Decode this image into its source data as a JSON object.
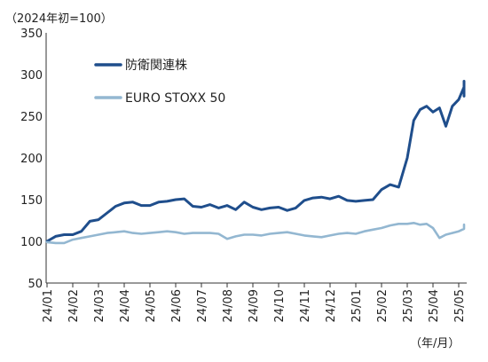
{
  "chart_data": {
    "type": "line",
    "unit_label": "（2024年初=100）",
    "x_unit_label": "（年/月）",
    "y_ticks": [
      50,
      100,
      150,
      200,
      250,
      300,
      350
    ],
    "ylim": [
      50,
      350
    ],
    "x_ticks": [
      "24/01",
      "24/02",
      "24/03",
      "24/04",
      "24/05",
      "24/06",
      "24/07",
      "24/08",
      "24/09",
      "24/10",
      "24/11",
      "24/12",
      "25/01",
      "25/02",
      "25/03",
      "25/04",
      "25/05"
    ],
    "x_range_months": [
      "24/01",
      "25/05"
    ],
    "grid": "none",
    "legend": "top-left, inside plot",
    "series": [
      {
        "name": "防衛関連株",
        "color": "#1f4e8c",
        "x": [
          "24/01",
          "24/01",
          "24/01",
          "24/02",
          "24/02",
          "24/02",
          "24/03",
          "24/03",
          "24/03",
          "24/04",
          "24/04",
          "24/04",
          "24/05",
          "24/05",
          "24/05",
          "24/06",
          "24/06",
          "24/06",
          "24/07",
          "24/07",
          "24/07",
          "24/08",
          "24/08",
          "24/08",
          "24/09",
          "24/09",
          "24/09",
          "24/10",
          "24/10",
          "24/10",
          "24/11",
          "24/11",
          "24/11",
          "24/12",
          "24/12",
          "24/12",
          "25/01",
          "25/01",
          "25/01",
          "25/02",
          "25/02",
          "25/02",
          "25/03",
          "25/03",
          "25/03",
          "25/03",
          "25/04",
          "25/04",
          "25/04",
          "25/04",
          "25/05",
          "25/05",
          "25/05",
          "25/05"
        ],
        "values": [
          100,
          106,
          108,
          108,
          112,
          124,
          126,
          134,
          142,
          146,
          147,
          143,
          143,
          147,
          148,
          150,
          151,
          142,
          141,
          144,
          140,
          143,
          138,
          147,
          141,
          138,
          140,
          141,
          137,
          140,
          149,
          152,
          153,
          151,
          154,
          149,
          148,
          149,
          150,
          162,
          168,
          165,
          200,
          245,
          258,
          262,
          255,
          260,
          238,
          262,
          270,
          285,
          292,
          274
        ]
      },
      {
        "name": "EURO STOXX 50",
        "color": "#93b7d1",
        "x": [
          "24/01",
          "24/01",
          "24/01",
          "24/02",
          "24/02",
          "24/02",
          "24/03",
          "24/03",
          "24/03",
          "24/04",
          "24/04",
          "24/04",
          "24/05",
          "24/05",
          "24/05",
          "24/06",
          "24/06",
          "24/06",
          "24/07",
          "24/07",
          "24/07",
          "24/08",
          "24/08",
          "24/08",
          "24/09",
          "24/09",
          "24/09",
          "24/10",
          "24/10",
          "24/10",
          "24/11",
          "24/11",
          "24/11",
          "24/12",
          "24/12",
          "24/12",
          "25/01",
          "25/01",
          "25/01",
          "25/02",
          "25/02",
          "25/02",
          "25/03",
          "25/03",
          "25/03",
          "25/03",
          "25/04",
          "25/04",
          "25/04",
          "25/04",
          "25/05",
          "25/05",
          "25/05",
          "25/05"
        ],
        "values": [
          99,
          98,
          98,
          102,
          104,
          106,
          108,
          110,
          111,
          112,
          110,
          109,
          110,
          111,
          112,
          111,
          109,
          110,
          110,
          110,
          109,
          103,
          106,
          108,
          108,
          107,
          109,
          110,
          111,
          109,
          107,
          106,
          105,
          107,
          109,
          110,
          109,
          112,
          114,
          116,
          119,
          121,
          121,
          122,
          120,
          121,
          116,
          104,
          108,
          110,
          112,
          115,
          117,
          120
        ]
      }
    ]
  }
}
